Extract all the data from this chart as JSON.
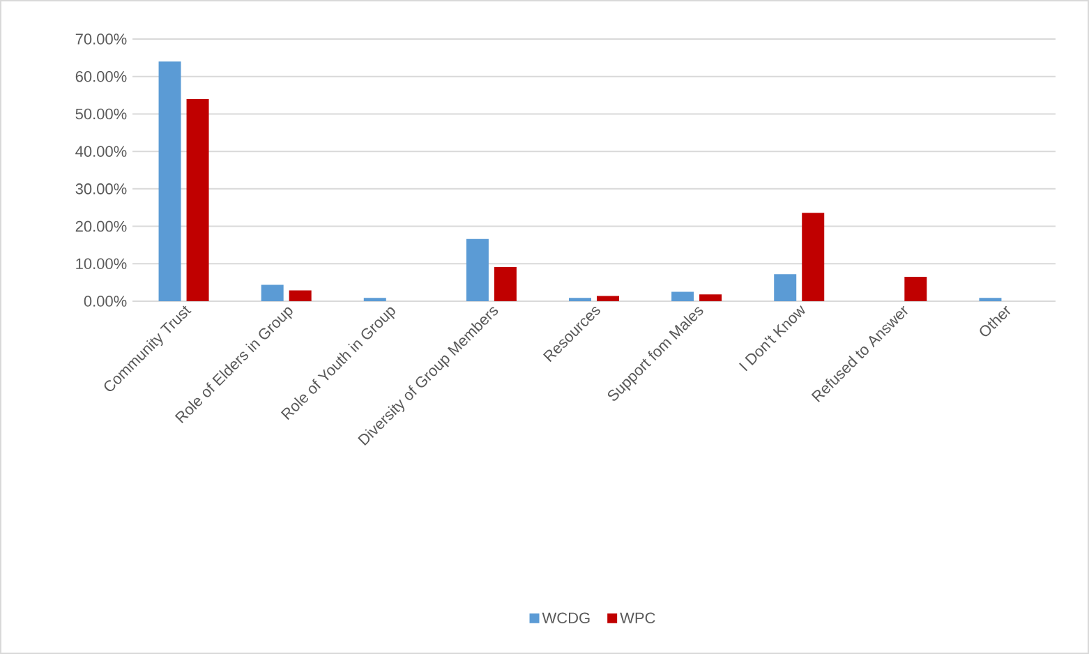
{
  "chart_data": {
    "type": "bar",
    "categories": [
      "Community Trust",
      "Role of Elders in Group",
      "Role of Youth in Group",
      "Diversity of Group Members",
      "Resources",
      "Support fom Males",
      "I Don't Know",
      "Refused to Answer",
      "Other"
    ],
    "series": [
      {
        "name": "WCDG",
        "color": "#5b9bd5",
        "values": [
          64,
          4.4,
          0.9,
          16.6,
          0.9,
          2.5,
          7.2,
          0,
          0.9
        ]
      },
      {
        "name": "WPC",
        "color": "#c00000",
        "values": [
          54,
          2.9,
          0,
          9.1,
          1.4,
          1.8,
          23.6,
          6.5,
          0
        ]
      }
    ],
    "ylim": [
      0,
      70
    ],
    "yticks": [
      {
        "value": 0,
        "label": "0.00%"
      },
      {
        "value": 10,
        "label": "10.00%"
      },
      {
        "value": 20,
        "label": "20.00%"
      },
      {
        "value": 30,
        "label": "30.00%"
      },
      {
        "value": 40,
        "label": "40.00%"
      },
      {
        "value": 50,
        "label": "50.00%"
      },
      {
        "value": 60,
        "label": "60.00%"
      },
      {
        "value": 70,
        "label": "70.00%"
      }
    ],
    "grid": "y",
    "legend": "bottom"
  }
}
